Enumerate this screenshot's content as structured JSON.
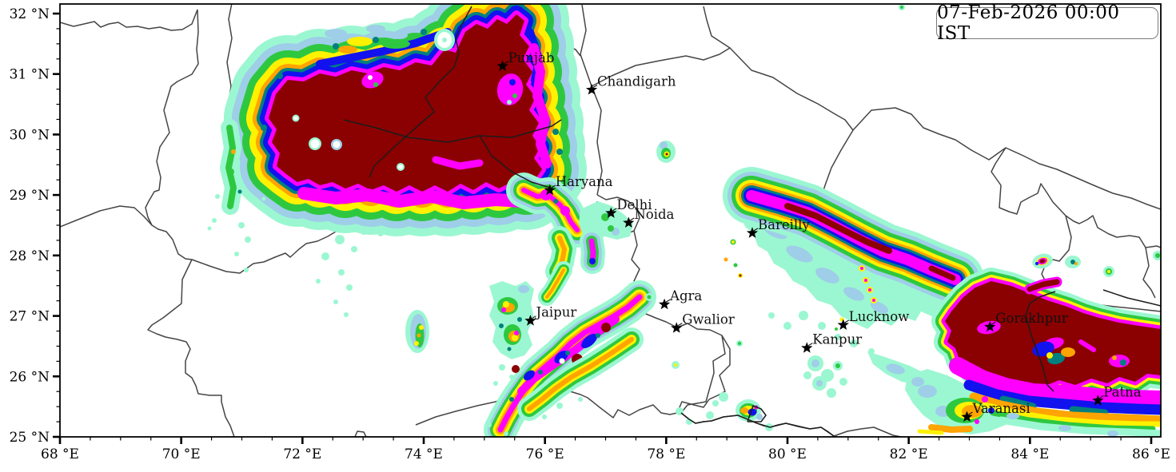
{
  "timestamp_label": "07-Feb-2026 00:00 IST",
  "axes": {
    "x": {
      "unit": "°E",
      "range": [
        68,
        86.16
      ],
      "major_ticks": [
        {
          "v": 68,
          "label": "68 °E"
        },
        {
          "v": 70,
          "label": "70 °E"
        },
        {
          "v": 72,
          "label": "72 °E"
        },
        {
          "v": 74,
          "label": "74 °E"
        },
        {
          "v": 76,
          "label": "76 °E"
        },
        {
          "v": 78,
          "label": "78 °E"
        },
        {
          "v": 80,
          "label": "80 °E"
        },
        {
          "v": 82,
          "label": "82 °E"
        },
        {
          "v": 84,
          "label": "84 °E"
        },
        {
          "v": 86,
          "label": "86 °E"
        }
      ],
      "minor_step_deg": 0.5
    },
    "y": {
      "unit": "°N",
      "range": [
        25,
        32.16
      ],
      "major_ticks": [
        {
          "v": 25,
          "label": "25 °N"
        },
        {
          "v": 26,
          "label": "26 °N"
        },
        {
          "v": 27,
          "label": "27 °N"
        },
        {
          "v": 28,
          "label": "28 °N"
        },
        {
          "v": 29,
          "label": "29 °N"
        },
        {
          "v": 30,
          "label": "30 °N"
        },
        {
          "v": 31,
          "label": "31 °N"
        },
        {
          "v": 32,
          "label": "32 °N"
        }
      ],
      "minor_step_deg": 0.25
    }
  },
  "palette": [
    {
      "name": "aquamarine",
      "color": "#9BF7D1"
    },
    {
      "name": "light-blue",
      "color": "#9FCEE8"
    },
    {
      "name": "green",
      "color": "#2EC840"
    },
    {
      "name": "yellow",
      "color": "#FFF200"
    },
    {
      "name": "orange",
      "color": "#FFA400"
    },
    {
      "name": "teal",
      "color": "#00807E"
    },
    {
      "name": "blue",
      "color": "#1212EE"
    },
    {
      "name": "magenta",
      "color": "#FF00FF"
    },
    {
      "name": "dark-red",
      "color": "#8B0000"
    }
  ],
  "cities": [
    {
      "name": "Punjab",
      "lon": 75.3,
      "lat": 31.13
    },
    {
      "name": "Chandigarh",
      "lon": 76.77,
      "lat": 30.74
    },
    {
      "name": "Haryana",
      "lon": 76.08,
      "lat": 29.08
    },
    {
      "name": "Delhi",
      "lon": 77.09,
      "lat": 28.7
    },
    {
      "name": "Noida",
      "lon": 77.38,
      "lat": 28.54
    },
    {
      "name": "Bareilly",
      "lon": 79.42,
      "lat": 28.37
    },
    {
      "name": "Agra",
      "lon": 77.97,
      "lat": 27.19
    },
    {
      "name": "Jaipur",
      "lon": 75.76,
      "lat": 26.92
    },
    {
      "name": "Gwalior",
      "lon": 78.17,
      "lat": 26.8
    },
    {
      "name": "Lucknow",
      "lon": 80.92,
      "lat": 26.85
    },
    {
      "name": "Kanpur",
      "lon": 80.32,
      "lat": 26.47
    },
    {
      "name": "Gorakhpur",
      "lon": 83.34,
      "lat": 26.82
    },
    {
      "name": "Patna",
      "lon": 85.12,
      "lat": 25.6
    },
    {
      "name": "Varanasi",
      "lon": 82.96,
      "lat": 25.33
    }
  ]
}
